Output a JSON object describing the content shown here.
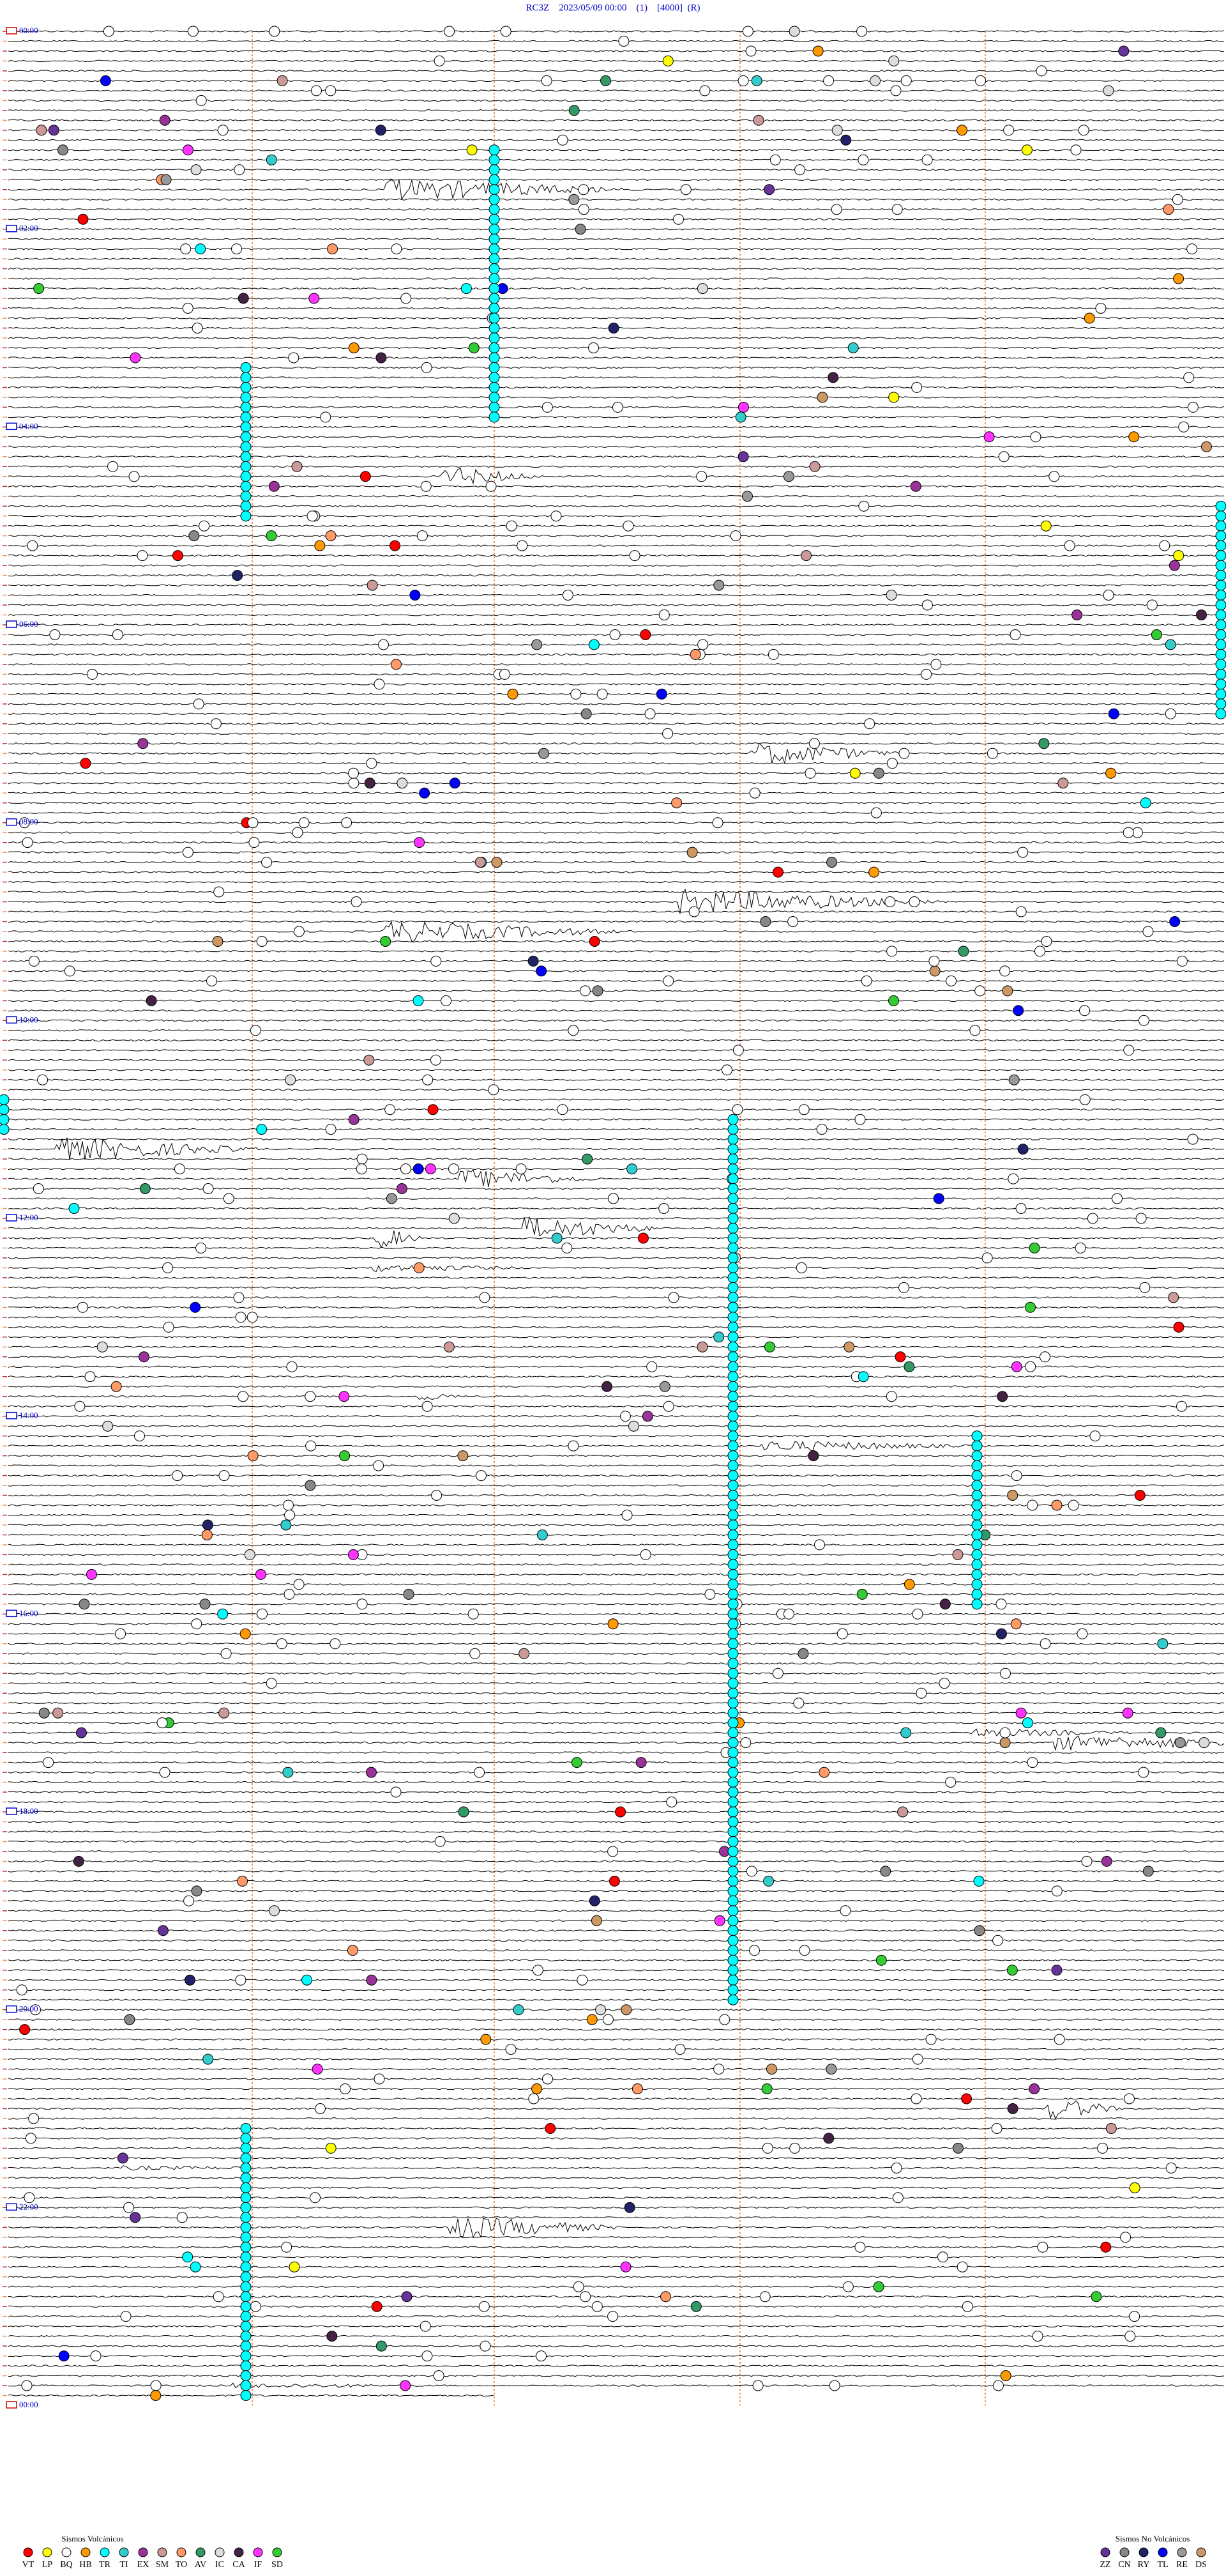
{
  "header": {
    "title": "RC3Z    2023/05/09 00:00    (1)    [4000]  (R)"
  },
  "hour_labels": [
    "00:00",
    "02:00",
    "04:00",
    "06:00",
    "08:00",
    "10:00",
    "12:00",
    "14:00",
    "16:00",
    "18:00",
    "20:00",
    "22:00",
    "00:00"
  ],
  "legend": {
    "volcanic": {
      "title": "Sismos Volcánicos",
      "items": [
        {
          "label": "VT",
          "color": "#ff0000"
        },
        {
          "label": "LP",
          "color": "#ffff00"
        },
        {
          "label": "BQ",
          "color": "#ffffff"
        },
        {
          "label": "HB",
          "color": "#ff9900"
        },
        {
          "label": "TR",
          "color": "#00ffff"
        },
        {
          "label": "TI",
          "color": "#33cccc"
        },
        {
          "label": "EX",
          "color": "#993399"
        },
        {
          "label": "SM",
          "color": "#cc9999"
        },
        {
          "label": "TO",
          "color": "#ff9966"
        },
        {
          "label": "AV",
          "color": "#339966"
        },
        {
          "label": "IC",
          "color": "#dddddd"
        },
        {
          "label": "CA",
          "color": "#442244"
        },
        {
          "label": "IF",
          "color": "#ff33ff"
        },
        {
          "label": "SD",
          "color": "#33cc33"
        }
      ]
    },
    "non_volcanic": {
      "title": "Sismos No Volcánicos",
      "items": [
        {
          "label": "ZZ",
          "color": "#663399"
        },
        {
          "label": "CN",
          "color": "#888888"
        },
        {
          "label": "RY",
          "color": "#222266"
        },
        {
          "label": "TL",
          "color": "#0000ff"
        },
        {
          "label": "RE",
          "color": "#999999"
        },
        {
          "label": "DS",
          "color": "#cc9966"
        }
      ]
    }
  }
}
